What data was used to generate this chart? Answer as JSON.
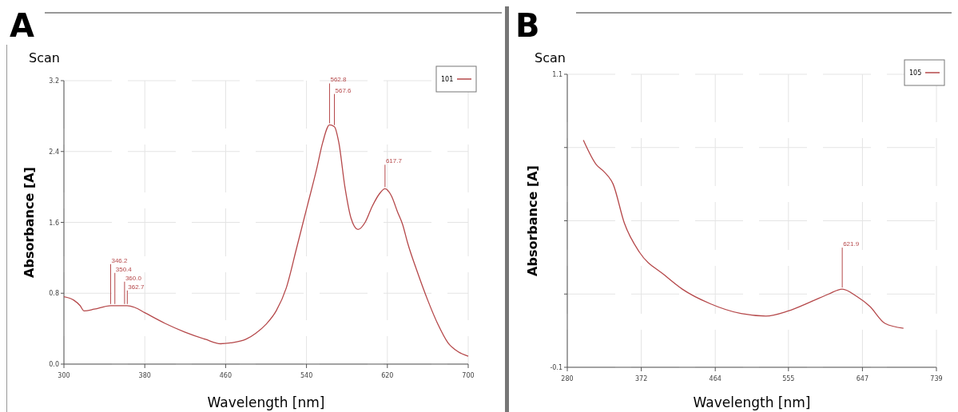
{
  "chart_data": [
    {
      "type": "line",
      "title": "A",
      "subtitle": "Scan",
      "xlabel": "Wavelength [nm]",
      "ylabel": "Absorbance [A]",
      "xlim": [
        300,
        700
      ],
      "xticks": [
        300,
        380,
        460,
        540,
        620,
        700
      ],
      "ylim": [
        0,
        3.2
      ],
      "yticks": [
        {
          "value": 0,
          "label": "0.0"
        },
        0.8,
        1.6,
        2.4,
        3.2
      ],
      "grid": true,
      "legend": "top right",
      "marker": "none",
      "line_style": "solid",
      "series": [
        {
          "name": "101",
          "color": "#b5484a",
          "x": [
            300,
            310,
            316,
            320,
            330,
            346.2,
            350.4,
            360,
            362.7,
            370,
            380,
            400,
            420,
            440,
            455,
            465,
            480,
            490,
            500,
            510,
            520,
            530,
            540,
            550,
            556,
            562.8,
            567.6,
            572,
            578,
            584,
            591,
            598,
            605,
            612,
            617.7,
            624,
            630,
            635,
            640,
            650,
            660,
            670,
            680,
            690,
            700
          ],
          "values": [
            0.76,
            0.72,
            0.66,
            0.6,
            0.62,
            0.66,
            0.66,
            0.66,
            0.66,
            0.64,
            0.58,
            0.46,
            0.36,
            0.28,
            0.23,
            0.24,
            0.28,
            0.35,
            0.45,
            0.6,
            0.86,
            1.3,
            1.75,
            2.2,
            2.5,
            2.7,
            2.68,
            2.5,
            2.0,
            1.65,
            1.52,
            1.6,
            1.78,
            1.92,
            1.98,
            1.9,
            1.72,
            1.58,
            1.37,
            1.03,
            0.72,
            0.45,
            0.24,
            0.14,
            0.09
          ]
        }
      ],
      "annotations": [
        {
          "text": "346.2",
          "x": 346.2,
          "y": 0.66
        },
        {
          "text": "350.4",
          "x": 350.4,
          "y": 0.66
        },
        {
          "text": "360.0",
          "x": 360,
          "y": 0.66
        },
        {
          "text": "362.7",
          "x": 362.7,
          "y": 0.66
        },
        {
          "text": "562.8",
          "x": 562.8,
          "y": 2.7
        },
        {
          "text": "567.6",
          "x": 567.6,
          "y": 2.68
        },
        {
          "text": "617.7",
          "x": 617.7,
          "y": 1.98
        }
      ]
    },
    {
      "type": "line",
      "title": "B",
      "subtitle": "Scan",
      "xlabel": "Wavelength [nm]",
      "ylabel": "Absorbance [A]",
      "xlim": [
        280,
        739
      ],
      "xticks": [
        280,
        372,
        464,
        555,
        647,
        739
      ],
      "ylim": [
        -0.1,
        1.1
      ],
      "yticks": [
        -0.1,
        {
          "value": 0.2,
          "label": null
        },
        {
          "value": 0.5,
          "label": null
        },
        {
          "value": 0.8,
          "label": null
        },
        1.1
      ],
      "grid": true,
      "legend": "top right",
      "marker": "none",
      "line_style": "solid",
      "series": [
        {
          "name": "105",
          "color": "#b5484a",
          "x": [
            300,
            316,
            326,
            337,
            351,
            370,
            400,
            423,
            458,
            496,
            527,
            554,
            584,
            605,
            621.9,
            640,
            656,
            675,
            698
          ],
          "values": [
            0.83,
            0.73,
            0.7,
            0.65,
            0.49,
            0.37,
            0.28,
            0.22,
            0.16,
            0.12,
            0.11,
            0.13,
            0.17,
            0.2,
            0.22,
            0.19,
            0.15,
            0.08,
            0.06
          ]
        }
      ],
      "annotations": [
        {
          "text": "621.9",
          "x": 621.9,
          "y": 0.22
        }
      ]
    }
  ]
}
